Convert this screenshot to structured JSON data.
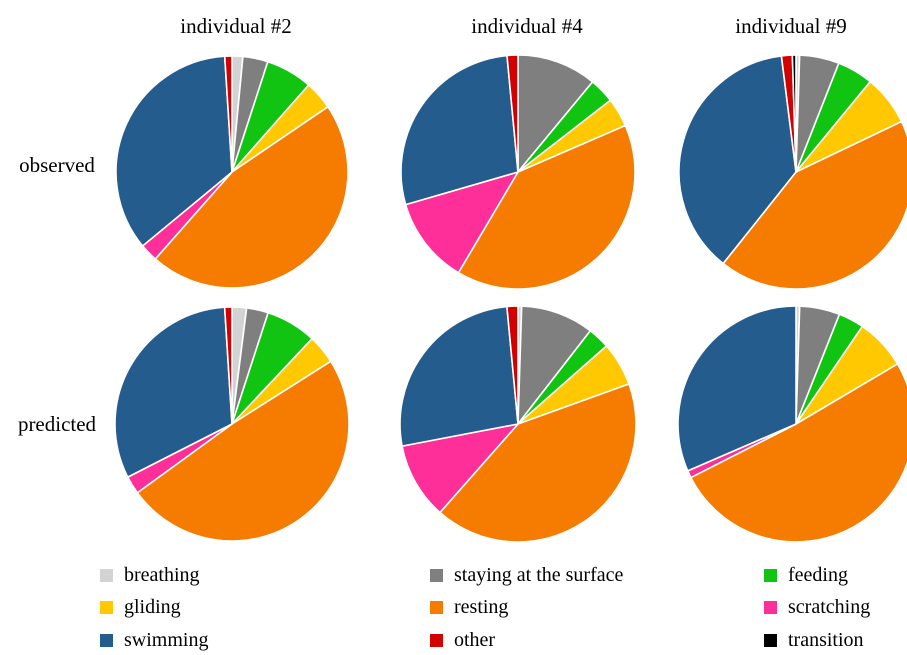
{
  "chart_data": {
    "type": "pie",
    "columns": [
      "individual #2",
      "individual #4",
      "individual #9"
    ],
    "rows": [
      "observed",
      "predicted"
    ],
    "categories": [
      "breathing",
      "staying at the surface",
      "feeding",
      "gliding",
      "resting",
      "scratching",
      "swimming",
      "other",
      "transition"
    ],
    "colors": {
      "breathing": "#d3d3d3",
      "staying at the surface": "#7f7f7f",
      "feeding": "#11c411",
      "gliding": "#ffc800",
      "resting": "#f57c00",
      "scratching": "#ff2f9a",
      "swimming": "#255c8e",
      "other": "#d20000",
      "transition": "#000000"
    },
    "pies": [
      {
        "row": "observed",
        "column": "individual #2",
        "values": {
          "breathing": 1.5,
          "staying at the surface": 3.5,
          "feeding": 6.5,
          "gliding": 4,
          "resting": 46,
          "scratching": 2.5,
          "swimming": 35,
          "other": 1,
          "transition": 0
        }
      },
      {
        "row": "observed",
        "column": "individual #4",
        "values": {
          "breathing": 0,
          "staying at the surface": 11,
          "feeding": 3.5,
          "gliding": 4,
          "resting": 40,
          "scratching": 12,
          "swimming": 28,
          "other": 1.5,
          "transition": 0
        }
      },
      {
        "row": "observed",
        "column": "individual #9",
        "values": {
          "breathing": 0.5,
          "staying at the surface": 5.5,
          "feeding": 5,
          "gliding": 7,
          "resting": 43,
          "scratching": 0,
          "swimming": 37.5,
          "other": 1.5,
          "transition": 0.5
        }
      },
      {
        "row": "predicted",
        "column": "individual #2",
        "values": {
          "breathing": 2,
          "staying at the surface": 3,
          "feeding": 7,
          "gliding": 4,
          "resting": 49,
          "scratching": 2.5,
          "swimming": 31.5,
          "other": 1,
          "transition": 0
        }
      },
      {
        "row": "predicted",
        "column": "individual #4",
        "values": {
          "breathing": 0.5,
          "staying at the surface": 10,
          "feeding": 3,
          "gliding": 6,
          "resting": 42,
          "scratching": 10.5,
          "swimming": 26.5,
          "other": 1.5,
          "transition": 0
        }
      },
      {
        "row": "predicted",
        "column": "individual #9",
        "values": {
          "breathing": 0.5,
          "staying at the surface": 5.5,
          "feeding": 3.5,
          "gliding": 7,
          "resting": 51,
          "scratching": 1,
          "swimming": 31.5,
          "other": 0,
          "transition": 0
        }
      }
    ],
    "legend": {
      "placement": "bottom",
      "entries": [
        "breathing",
        "staying at the surface",
        "feeding",
        "gliding",
        "resting",
        "scratching",
        "swimming",
        "other",
        "transition"
      ]
    }
  }
}
